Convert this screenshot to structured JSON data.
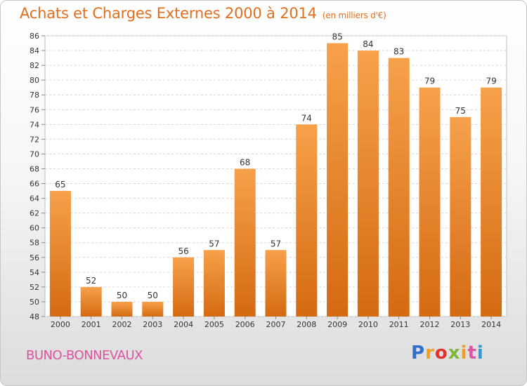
{
  "chart_data": {
    "type": "bar",
    "title": "Achats et Charges Externes 2000 à 2014",
    "unit": "(en milliers d'€)",
    "categories": [
      "2000",
      "2001",
      "2002",
      "2003",
      "2004",
      "2005",
      "2006",
      "2007",
      "2008",
      "2009",
      "2010",
      "2011",
      "2012",
      "2013",
      "2014"
    ],
    "values": [
      65,
      52,
      50,
      50,
      56,
      57,
      68,
      57,
      74,
      85,
      84,
      83,
      79,
      75,
      79
    ],
    "ylim": [
      48,
      86
    ],
    "yticks": [
      48,
      50,
      52,
      54,
      56,
      58,
      60,
      62,
      64,
      66,
      68,
      70,
      72,
      74,
      76,
      78,
      80,
      82,
      84,
      86
    ],
    "grid": true,
    "bar_color": "#f28c28"
  },
  "place": "BUNO-BONNEVAUX",
  "logo": {
    "letters": [
      "P",
      "r",
      "o",
      "x",
      "i",
      "t",
      "i"
    ],
    "colors": [
      "#2e6fc9",
      "#f0a020",
      "#e0332b",
      "#7bb83a",
      "#f0a020",
      "#d9559f",
      "#2e9ad8"
    ]
  }
}
